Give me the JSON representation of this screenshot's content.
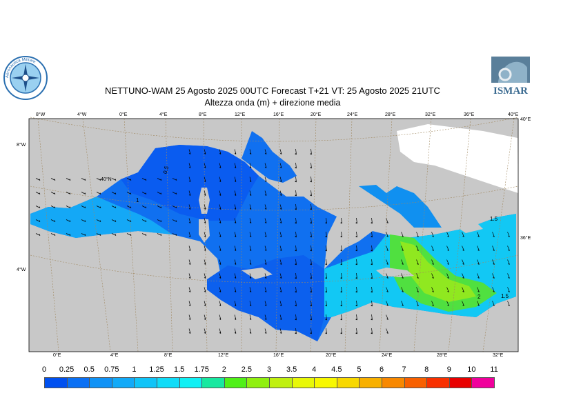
{
  "header": {
    "title_line1": "NETTUNO-WAM  25   Agosto  2025 00UTC Forecast T+21 VT: 25   Agosto  2025 21UTC",
    "title_line2": "Altezza onda (m) + direzione media"
  },
  "logos": {
    "left": {
      "name": "aeronautica-militare-seal",
      "text": "Aeronautica Militare"
    },
    "right": {
      "name": "ismar-logo",
      "text": "ISMAR"
    }
  },
  "map": {
    "top_ticks": [
      "8°W",
      "4°W",
      "0°E",
      "4°E",
      "8°E",
      "12°E",
      "16°E",
      "20°E",
      "24°E",
      "28°E",
      "32°E",
      "36°E",
      "40°E"
    ],
    "bottom_ticks": [
      "0°E",
      "4°E",
      "8°E",
      "12°E",
      "16°E",
      "20°E",
      "24°E",
      "28°E",
      "32°E"
    ],
    "left_ticks": [
      "8°W",
      "40°N",
      "4°W"
    ],
    "right_ticks": [
      "40°E",
      "36°E"
    ],
    "contour_labels": [
      "0.5",
      "1",
      "1.5",
      "2",
      "1.5"
    ],
    "colors": {
      "land": "#c8c8c8",
      "graticule": "#a08860",
      "arrow": "#000000"
    }
  },
  "legend": {
    "labels": [
      "0",
      "0.25",
      "0.5",
      "0.75",
      "1",
      "1.25",
      "1.5",
      "1.75",
      "2",
      "2.5",
      "3",
      "3.5",
      "4",
      "4.5",
      "5",
      "6",
      "7",
      "8",
      "9",
      "10",
      "11"
    ],
    "colors": [
      "#0050f0",
      "#0a70f4",
      "#1092f6",
      "#12aaf8",
      "#10c4f8",
      "#10dcf8",
      "#10f0f4",
      "#18e8a0",
      "#50f018",
      "#90f010",
      "#c0f010",
      "#e8f808",
      "#f8f800",
      "#f8d800",
      "#f8b000",
      "#f88800",
      "#f86000",
      "#f83000",
      "#e80000",
      "#f0009c"
    ]
  }
}
